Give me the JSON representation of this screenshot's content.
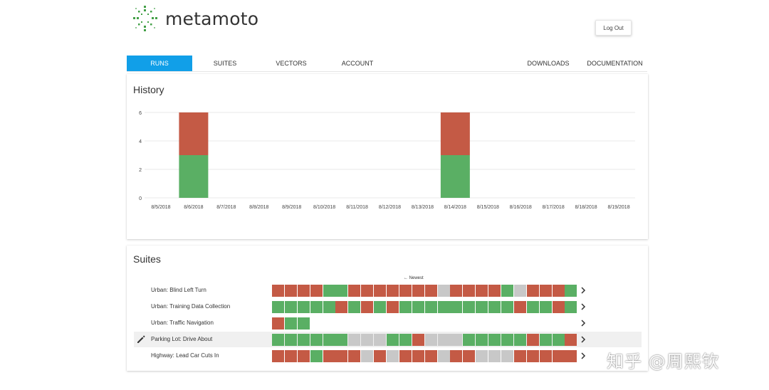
{
  "app": {
    "brand": "metamoto",
    "logout_label": "Log Out"
  },
  "nav": {
    "tabs": [
      {
        "label": "RUNS",
        "active": true
      },
      {
        "label": "SUITES",
        "active": false
      },
      {
        "label": "VECTORS",
        "active": false
      },
      {
        "label": "ACCOUNT",
        "active": false
      }
    ],
    "right_links": [
      {
        "label": "DOWNLOADS"
      },
      {
        "label": "DOCUMENTATION"
      }
    ]
  },
  "history": {
    "title": "History"
  },
  "chart_data": {
    "type": "bar",
    "stacked": true,
    "categories": [
      "8/5/2018",
      "8/6/2018",
      "8/7/2018",
      "8/8/2018",
      "8/9/2018",
      "8/10/2018",
      "8/11/2018",
      "8/12/2018",
      "8/13/2018",
      "8/14/2018",
      "8/15/2018",
      "8/16/2018",
      "8/17/2018",
      "8/18/2018",
      "8/19/2018"
    ],
    "series": [
      {
        "color": "#5aaf64",
        "values": [
          0,
          3,
          0,
          0,
          0,
          0,
          0,
          0,
          0,
          3,
          0,
          0,
          0,
          0,
          0
        ]
      },
      {
        "color": "#c45a45",
        "values": [
          0,
          3,
          0,
          0,
          0,
          0,
          0,
          0,
          0,
          3,
          0,
          0,
          0,
          0,
          0
        ]
      }
    ],
    "yticks": [
      0,
      2,
      4,
      6
    ],
    "ylim": [
      0,
      6
    ],
    "grid": true,
    "title": "",
    "xlabel": "",
    "ylabel": ""
  },
  "suites": {
    "title": "Suites",
    "newest_label": "← Newest",
    "colors": {
      "fail": "#c45a45",
      "pass": "#5aaf64",
      "none": "#c8c8c8"
    },
    "rows": [
      {
        "name": "Urban: Blind Left Turn",
        "highlight": false,
        "edit": false,
        "results": [
          "F",
          "F",
          "F",
          "F",
          "P",
          "P",
          "F",
          "F",
          "F",
          "F",
          "F",
          "F",
          "F",
          "N",
          "F",
          "F",
          "F",
          "F",
          "P",
          "N",
          "F",
          "F",
          "F",
          "P"
        ]
      },
      {
        "name": "Urban: Training Data Collection",
        "highlight": false,
        "edit": false,
        "results": [
          "P",
          "P",
          "P",
          "P",
          "P",
          "F",
          "P",
          "F",
          "P",
          "F",
          "P",
          "P",
          "P",
          "P",
          "P",
          "P",
          "P",
          "P",
          "P",
          "F",
          "P",
          "P",
          "F",
          "P"
        ]
      },
      {
        "name": "Urban: Traffic Navigation",
        "highlight": false,
        "edit": false,
        "results": [
          "F",
          "P",
          "P"
        ]
      },
      {
        "name": "Parking Lot: Drive About",
        "highlight": true,
        "edit": true,
        "results": [
          "P",
          "P",
          "P",
          "P",
          "P",
          "P",
          "N",
          "N",
          "N",
          "P",
          "P",
          "F",
          "N",
          "N",
          "N",
          "P",
          "P",
          "P",
          "P",
          "P",
          "F",
          "P",
          "P",
          "F"
        ]
      },
      {
        "name": "Highway: Lead Car Cuts In",
        "highlight": false,
        "edit": false,
        "results": [
          "F",
          "F",
          "F",
          "P",
          "F",
          "F",
          "F",
          "N",
          "F",
          "N",
          "F",
          "F",
          "F",
          "N",
          "F",
          "F",
          "N",
          "N",
          "N",
          "F",
          "F",
          "F",
          "F",
          "F"
        ]
      }
    ]
  },
  "watermark": {
    "text": "知乎 @周熙钦"
  }
}
